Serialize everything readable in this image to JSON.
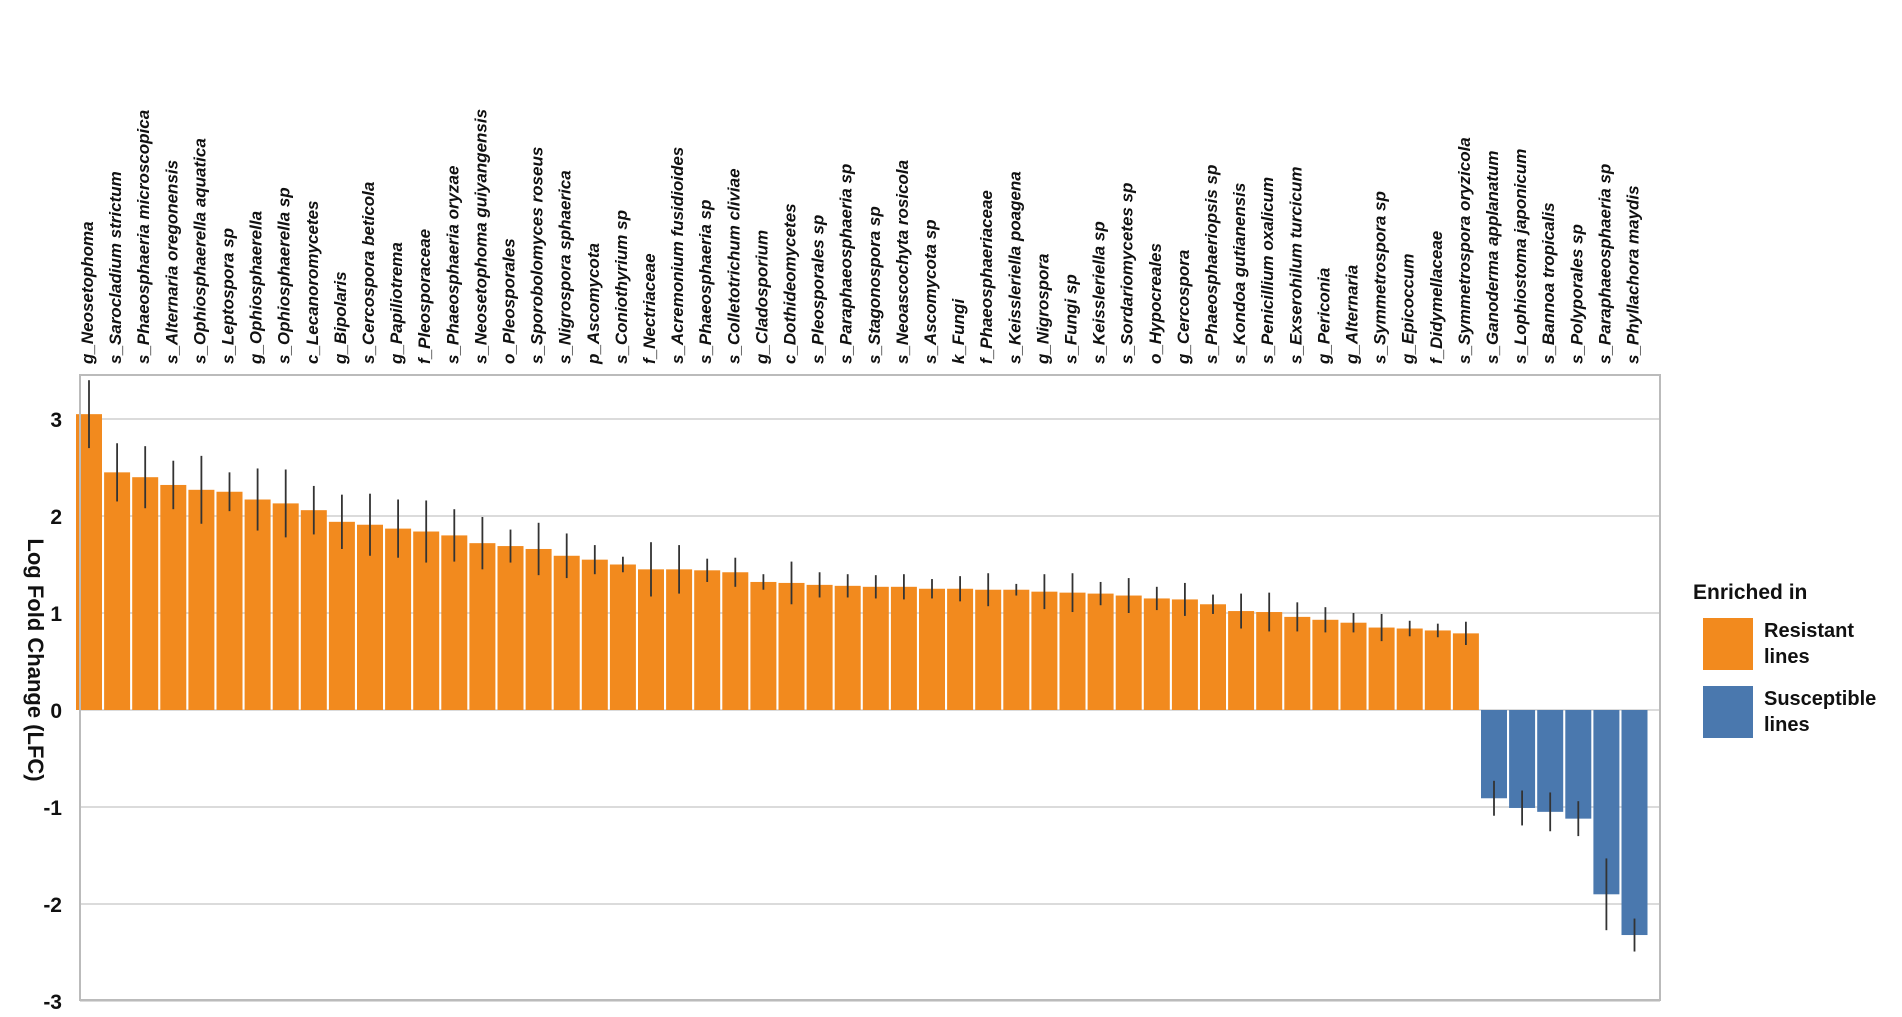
{
  "chart_data": {
    "type": "bar",
    "ylabel": "Log Fold Change (LFC)",
    "ylim": [
      -3,
      3.3
    ],
    "yticks": [
      -3,
      -2,
      -1,
      0,
      1,
      2,
      3
    ],
    "grid": "horizontal",
    "legend": {
      "title": "Enriched in",
      "placement": "right",
      "items": [
        {
          "label_lines": [
            "Resistant",
            "lines"
          ],
          "color": "#F28A1E"
        },
        {
          "label_lines": [
            "Susceptible",
            "lines"
          ],
          "color": "#4A78AE"
        }
      ]
    },
    "colors": {
      "resistant": "#F28A1E",
      "susceptible": "#4A78AE",
      "error_bar": "#333333",
      "grid": "#cfcfcf",
      "frame": "#bbbbbb"
    },
    "categories": [
      "g_Neosetophoma",
      "s_Sarocladium strictum",
      "s_Phaeosphaeria microscopica",
      "s_Alternaria oregonensis",
      "s_Ophiosphaerella aquatica",
      "s_Leptospora sp",
      "g_Ophiosphaerella",
      "s_Ophiosphaerella sp",
      "c_Lecanoromycetes",
      "g_Bipolaris",
      "s_Cercospora beticola",
      "g_Papiliotrema",
      "f_Pleosporaceae",
      "s_Phaeosphaeria oryzae",
      "s_Neosetophoma guiyangensis",
      "o_Pleosporales",
      "s_Sporobolomyces roseus",
      "s_Nigrospora sphaerica",
      "p_Ascomycota",
      "s_Coniothyrium sp",
      "f_Nectriaceae",
      "s_Acremonium fusidioides",
      "s_Phaeosphaeria sp",
      "s_Colletotrichum cliviae",
      "g_Cladosporium",
      "c_Dothideomycetes",
      "s_Pleosporales sp",
      "s_Paraphaeosphaeria sp",
      "s_Stagonospora sp",
      "s_Neoascochyta rosicola",
      "s_Ascomycota sp",
      "k_Fungi",
      "f_Phaeosphaeriaceae",
      "s_Keissleriella poagena",
      "g_Nigrospora",
      "s_Fungi sp",
      "s_Keissleriella sp",
      "s_Sordariomycetes sp",
      "o_Hypocreales",
      "g_Cercospora",
      "s_Phaeosphaeriopsis sp",
      "s_Kondoa gutianensis",
      "s_Penicillium oxalicum",
      "s_Exserohilum turcicum",
      "g_Periconia",
      "g_Alternaria",
      "s_Symmetrospora sp",
      "g_Epicoccum",
      "f_Didymellaceae",
      "s_Symmetrospora oryzicola",
      "s_Ganoderma applanatum",
      "s_Lophiostoma japonicum",
      "s_Bannoa tropicalis",
      "s_Polyporales sp",
      "s_Paraphaeosphaeria sp",
      "s_Phyllachora maydis"
    ],
    "values": [
      3.05,
      2.45,
      2.4,
      2.32,
      2.27,
      2.25,
      2.17,
      2.13,
      2.06,
      1.94,
      1.91,
      1.87,
      1.84,
      1.8,
      1.72,
      1.69,
      1.66,
      1.59,
      1.55,
      1.5,
      1.45,
      1.45,
      1.44,
      1.42,
      1.32,
      1.31,
      1.29,
      1.28,
      1.27,
      1.27,
      1.25,
      1.25,
      1.24,
      1.24,
      1.22,
      1.21,
      1.2,
      1.18,
      1.15,
      1.14,
      1.09,
      1.02,
      1.01,
      0.96,
      0.93,
      0.9,
      0.85,
      0.84,
      0.82,
      0.79,
      -0.91,
      -1.01,
      -1.05,
      -1.12,
      -1.9,
      -2.32
    ],
    "errors": [
      0.35,
      0.3,
      0.32,
      0.25,
      0.35,
      0.2,
      0.32,
      0.35,
      0.25,
      0.28,
      0.32,
      0.3,
      0.32,
      0.27,
      0.27,
      0.17,
      0.27,
      0.23,
      0.15,
      0.08,
      0.28,
      0.25,
      0.12,
      0.15,
      0.08,
      0.22,
      0.13,
      0.12,
      0.12,
      0.13,
      0.1,
      0.13,
      0.17,
      0.06,
      0.18,
      0.2,
      0.12,
      0.18,
      0.12,
      0.17,
      0.1,
      0.18,
      0.2,
      0.15,
      0.13,
      0.1,
      0.14,
      0.08,
      0.07,
      0.12,
      0.18,
      0.18,
      0.2,
      0.18,
      0.37,
      0.17
    ]
  }
}
